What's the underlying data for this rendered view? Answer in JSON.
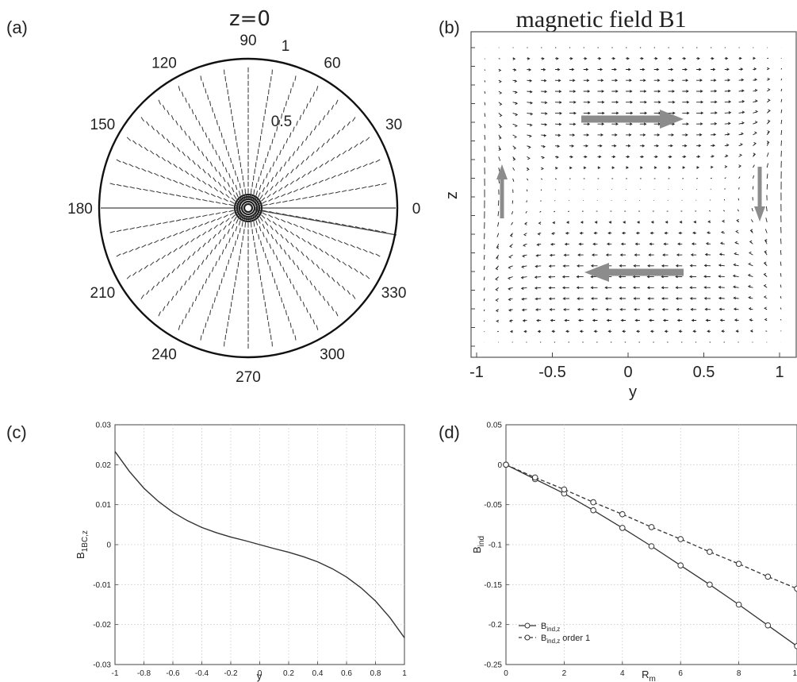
{
  "panels": {
    "a": {
      "label": "(a)",
      "title": "z=0"
    },
    "b": {
      "label": "(b)",
      "title": "magnetic field B1"
    },
    "c": {
      "label": "(c)"
    },
    "d": {
      "label": "(d)"
    }
  },
  "chart_data": [
    {
      "type": "polar-vector-field",
      "title": "z=0",
      "angle_labels": [
        "0",
        "30",
        "60",
        "90",
        "120",
        "150",
        "180",
        "210",
        "240",
        "270",
        "300",
        "330"
      ],
      "angle_values": [
        0,
        30,
        60,
        90,
        120,
        150,
        180,
        210,
        240,
        270,
        300,
        330
      ],
      "radial_ticks": [
        "0.5",
        "1"
      ],
      "radial_values": [
        0.5,
        1
      ]
    },
    {
      "type": "vector-field",
      "title": "magnetic field B1",
      "xlabel": "y",
      "ylabel": "z",
      "xlim": [
        -1,
        1
      ],
      "xticks": [
        "-1",
        "-0.5",
        "0",
        "0.5",
        "1"
      ],
      "xtick_values": [
        -1,
        -0.5,
        0,
        0.5,
        1
      ],
      "flow_arrows": [
        "right (upper)",
        "left (lower)",
        "up (left)",
        "down (right)"
      ],
      "grid": false
    },
    {
      "type": "line",
      "xlabel": "y",
      "ylabel": "B1BC,z",
      "xlim": [
        -1,
        1
      ],
      "ylim": [
        -0.03,
        0.03
      ],
      "xticks": [
        "-1",
        "-0.8",
        "-0.6",
        "-0.4",
        "-0.2",
        "0",
        "0.2",
        "0.4",
        "0.6",
        "0.8",
        "1"
      ],
      "xtick_values": [
        -1,
        -0.8,
        -0.6,
        -0.4,
        -0.2,
        0,
        0.2,
        0.4,
        0.6,
        0.8,
        1
      ],
      "yticks": [
        "0.03",
        "0.02",
        "0.01",
        "0",
        "-0.01",
        "-0.02",
        "-0.03"
      ],
      "ytick_values": [
        0.03,
        0.02,
        0.01,
        0,
        -0.01,
        -0.02,
        -0.03
      ],
      "grid": true,
      "series": [
        {
          "x": [
            -1,
            -0.9,
            -0.8,
            -0.7,
            -0.6,
            -0.5,
            -0.4,
            -0.3,
            -0.2,
            -0.1,
            0,
            0.1,
            0.2,
            0.3,
            0.4,
            0.5,
            0.6,
            0.7,
            0.8,
            0.9,
            1
          ],
          "y": [
            0.0233,
            0.0183,
            0.0141,
            0.0108,
            0.0081,
            0.006,
            0.0043,
            0.003,
            0.0019,
            0.001,
            0,
            -0.001,
            -0.0019,
            -0.003,
            -0.0043,
            -0.006,
            -0.0081,
            -0.0108,
            -0.0141,
            -0.0183,
            -0.0233
          ]
        }
      ]
    },
    {
      "type": "line",
      "xlabel": "Rm",
      "ylabel": "Bind",
      "xlim": [
        0,
        10
      ],
      "ylim": [
        -0.25,
        0.05
      ],
      "xticks": [
        "0",
        "2",
        "4",
        "6",
        "8",
        "10"
      ],
      "xtick_values": [
        0,
        2,
        4,
        6,
        8,
        10
      ],
      "yticks": [
        "0.05",
        "0",
        "-0.05",
        "-0.1",
        "-0.15",
        "-0.2",
        "-0.25"
      ],
      "ytick_values": [
        0.05,
        0,
        -0.05,
        -0.1,
        -0.15,
        -0.2,
        -0.25
      ],
      "grid": true,
      "legend_position": "bottom-left",
      "categories": [
        0,
        1,
        2,
        3,
        4,
        5,
        6,
        7,
        8,
        9,
        10
      ],
      "series": [
        {
          "name": "Bind,z",
          "dash": "solid",
          "values": [
            0,
            -0.018,
            -0.036,
            -0.057,
            -0.079,
            -0.102,
            -0.126,
            -0.15,
            -0.175,
            -0.201,
            -0.227
          ]
        },
        {
          "name": "Bind,z order 1",
          "dash": "dashed",
          "values": [
            0,
            -0.016,
            -0.031,
            -0.047,
            -0.062,
            -0.078,
            -0.093,
            -0.109,
            -0.124,
            -0.14,
            -0.155
          ]
        }
      ]
    }
  ]
}
